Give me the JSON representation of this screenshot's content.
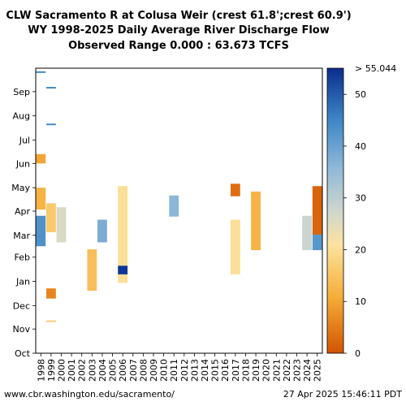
{
  "header": {
    "title_line1": "CLW Sacramento R at Colusa Weir (crest 61.8';crest 60.9')",
    "title_line2": "WY 1998-2025 Daily Average River Discharge Flow",
    "title_line3": "Observed Range 0.000 : 63.673 TCFS"
  },
  "footer": {
    "left": "www.cbr.washington.edu/sacramento/",
    "right": "27 Apr 2025 15:46:11 PDT"
  },
  "chart_data": {
    "type": "heatmap",
    "title": "CLW Sacramento R at Colusa Weir (crest 61.8';crest 60.9') WY 1998-2025 Daily Average River Discharge Flow Observed Range 0.000 : 63.673 TCFS",
    "x_categories": [
      "1998",
      "1999",
      "2000",
      "2001",
      "2002",
      "2003",
      "2004",
      "2005",
      "2006",
      "2007",
      "2008",
      "2009",
      "2010",
      "2011",
      "2012",
      "2013",
      "2014",
      "2015",
      "2016",
      "2017",
      "2018",
      "2019",
      "2020",
      "2021",
      "2022",
      "2023",
      "2024",
      "2025"
    ],
    "y_ticks": [
      "Oct",
      "Nov",
      "Dec",
      "Jan",
      "Feb",
      "Mar",
      "Apr",
      "May",
      "Jun",
      "Jul",
      "Aug",
      "Sep"
    ],
    "colorbar": {
      "min": 0,
      "max": 55.044,
      "ticks": [
        0,
        10,
        20,
        30,
        40,
        50
      ],
      "max_label": "> 55.044",
      "palette": [
        "#d35400",
        "#f6ae3a",
        "#fde3a0",
        "#cfd6cf",
        "#8fb8d8",
        "#3d86c6",
        "#0a2d8f"
      ]
    },
    "grid": false,
    "cells": [
      {
        "year": "1998",
        "start": "Sep 25",
        "end": "Sep 26",
        "value": 45
      },
      {
        "year": "1998",
        "start": "Jun 01",
        "end": "Jun 12",
        "value": 10
      },
      {
        "year": "1998",
        "start": "Apr 03",
        "end": "Apr 30",
        "value": 12
      },
      {
        "year": "1998",
        "start": "Feb 15",
        "end": "Mar 25",
        "value": 43
      },
      {
        "year": "1999",
        "start": "Sep 05",
        "end": "Sep 06",
        "value": 45
      },
      {
        "year": "1999",
        "start": "Jul 20",
        "end": "Jul 21",
        "value": 45
      },
      {
        "year": "1999",
        "start": "Mar 05",
        "end": "Apr 10",
        "value": 16
      },
      {
        "year": "1999",
        "start": "Dec 10",
        "end": "Dec 22",
        "value": 6
      },
      {
        "year": "1999",
        "start": "Nov 10",
        "end": "Nov 11",
        "value": 16
      },
      {
        "year": "2000",
        "start": "Feb 20",
        "end": "Apr 05",
        "value": 26
      },
      {
        "year": "2003",
        "start": "Dec 20",
        "end": "Feb 10",
        "value": 14
      },
      {
        "year": "2004",
        "start": "Feb 20",
        "end": "Mar 20",
        "value": 38
      },
      {
        "year": "2006",
        "start": "Dec 30",
        "end": "May 02",
        "value": 20
      },
      {
        "year": "2006",
        "start": "Jan 10",
        "end": "Jan 20",
        "value": 54
      },
      {
        "year": "2011",
        "start": "Mar 25",
        "end": "Apr 20",
        "value": 36
      },
      {
        "year": "2017",
        "start": "Jan 10",
        "end": "Mar 20",
        "value": 20
      },
      {
        "year": "2017",
        "start": "Apr 20",
        "end": "May 05",
        "value": 3
      },
      {
        "year": "2019",
        "start": "Feb 10",
        "end": "Apr 25",
        "value": 12
      },
      {
        "year": "2024",
        "start": "Feb 10",
        "end": "Mar 25",
        "value": 28
      },
      {
        "year": "2025",
        "start": "Mar 01",
        "end": "May 02",
        "value": 2
      },
      {
        "year": "2025",
        "start": "Feb 10",
        "end": "Mar 01",
        "value": 42
      }
    ]
  }
}
